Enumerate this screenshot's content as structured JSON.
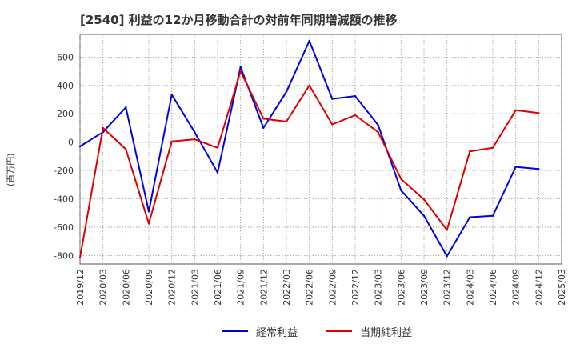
{
  "chart_data": {
    "type": "line",
    "title": "[2540]  利益の12か月移動合計の対前年同期増減額の推移",
    "ylabel": "(百万円)",
    "xlabel": "",
    "ylim": [
      -860,
      760
    ],
    "yticks": [
      600,
      400,
      200,
      0,
      -200,
      -400,
      -600,
      -800
    ],
    "categories": [
      "2019/12",
      "2020/03",
      "2020/06",
      "2020/09",
      "2020/12",
      "2021/03",
      "2021/06",
      "2021/09",
      "2021/12",
      "2022/03",
      "2022/06",
      "2022/09",
      "2022/12",
      "2023/03",
      "2023/06",
      "2023/09",
      "2023/12",
      "2024/03",
      "2024/06",
      "2024/09",
      "2024/12",
      "2025/03"
    ],
    "series": [
      {
        "name": "経常利益",
        "color": "#0000dd",
        "values": [
          -30,
          70,
          245,
          -490,
          335,
          70,
          -215,
          530,
          100,
          355,
          715,
          305,
          325,
          120,
          -340,
          -520,
          -805,
          -530,
          -520,
          -175,
          -190,
          null
        ]
      },
      {
        "name": "当期純利益",
        "color": "#dd0000",
        "values": [
          -815,
          100,
          -50,
          -575,
          5,
          20,
          -40,
          500,
          165,
          145,
          400,
          125,
          190,
          70,
          -260,
          -405,
          -620,
          -65,
          -40,
          225,
          205,
          null
        ]
      }
    ]
  }
}
